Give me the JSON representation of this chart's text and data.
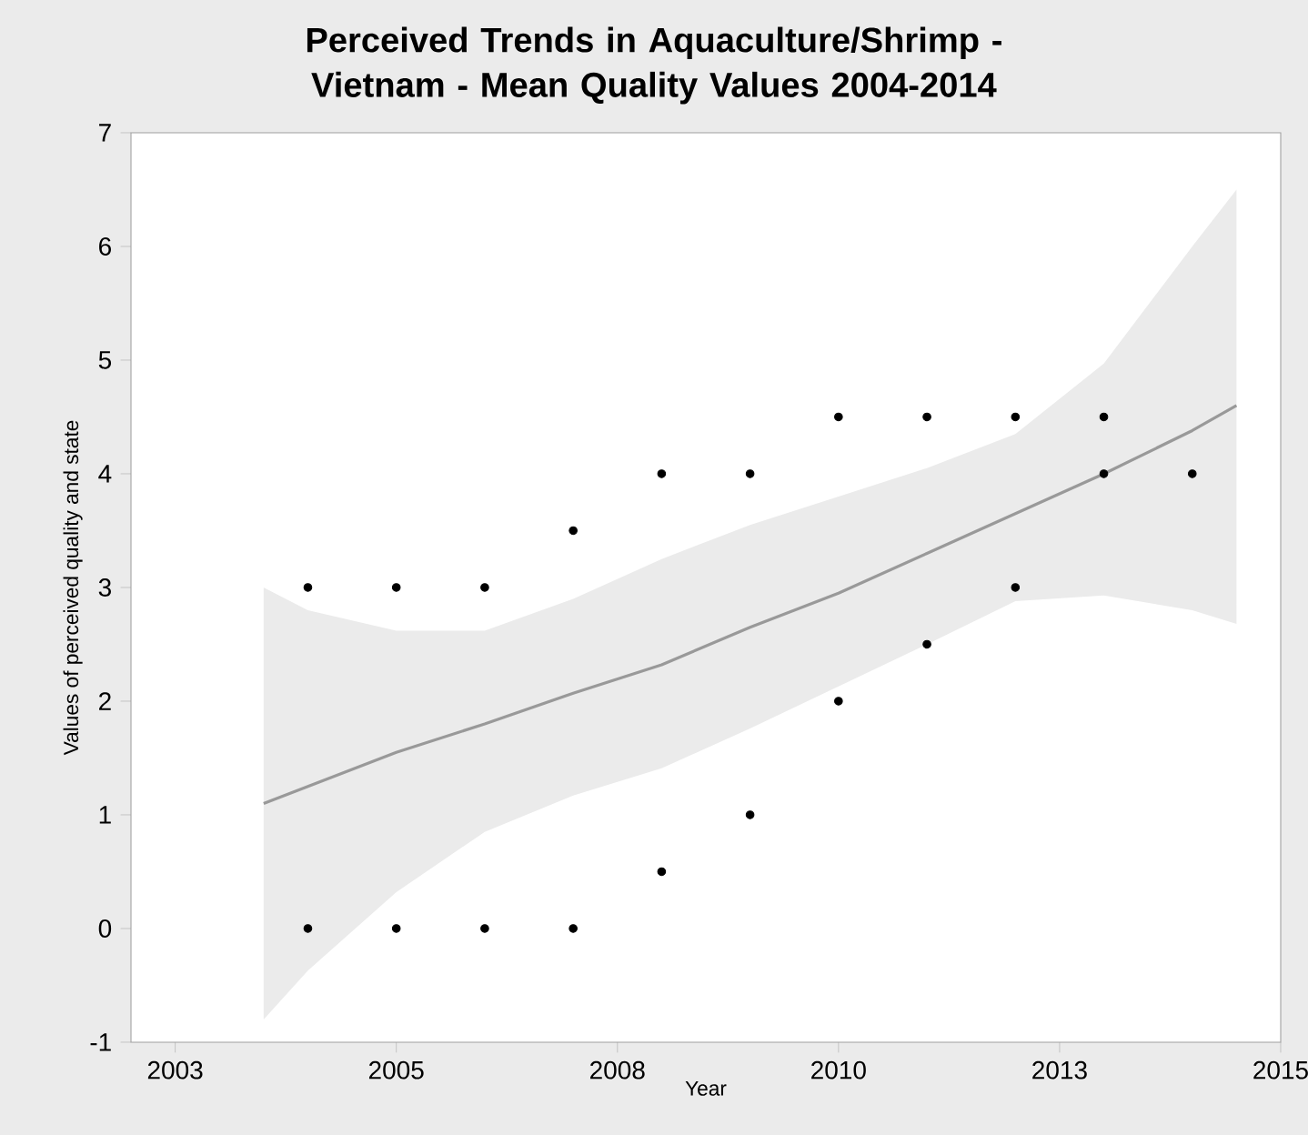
{
  "chart_data": {
    "type": "scatter",
    "title": "Perceived Trends in Aquaculture/Shrimp - Vietnam - Mean Quality Values 2004-2014",
    "xlabel": "Year",
    "ylabel": "Values of perceived quality and state",
    "xlim": [
      2002,
      2015
    ],
    "ylim": [
      -1,
      7
    ],
    "xticks": [
      {
        "value": 2002.5,
        "label": "2003"
      },
      2005,
      {
        "value": 2007.5,
        "label": "2008"
      },
      2010,
      {
        "value": 2012.5,
        "label": "2013"
      },
      2015
    ],
    "yticks": [
      -1,
      0,
      1,
      2,
      3,
      4,
      5,
      6,
      7
    ],
    "grid": false,
    "series": [
      {
        "type": "line",
        "color": "#999999",
        "x": [
          2003.5,
          2004,
          2005,
          2006,
          2007,
          2008,
          2009,
          2010,
          2011,
          2012,
          2013,
          2014,
          2014.5
        ],
        "values": [
          1.1,
          1.25,
          1.55,
          1.8,
          2.07,
          2.32,
          2.65,
          2.95,
          3.3,
          3.65,
          4.0,
          4.38,
          4.6
        ],
        "lower": [
          -0.8,
          -0.37,
          0.32,
          0.85,
          1.17,
          1.41,
          1.76,
          2.13,
          2.5,
          2.88,
          2.93,
          2.8,
          2.68
        ],
        "upper": [
          3.0,
          2.8,
          2.62,
          2.62,
          2.9,
          3.25,
          3.55,
          3.8,
          4.05,
          4.35,
          4.97,
          6.0,
          6.5
        ]
      },
      {
        "type": "scatter",
        "marker": "circle",
        "color": "#000000",
        "x": [
          2004,
          2004,
          2005,
          2005,
          2006,
          2006,
          2007,
          2007,
          2008,
          2008,
          2009,
          2009,
          2010,
          2010,
          2011,
          2011,
          2012,
          2012,
          2013,
          2013,
          2014
        ],
        "values": [
          3,
          0,
          3,
          0,
          3,
          0,
          3.5,
          0,
          4,
          0.5,
          4,
          1,
          4.5,
          2,
          4.5,
          2.5,
          4.5,
          3,
          4.5,
          4,
          4
        ]
      }
    ]
  }
}
